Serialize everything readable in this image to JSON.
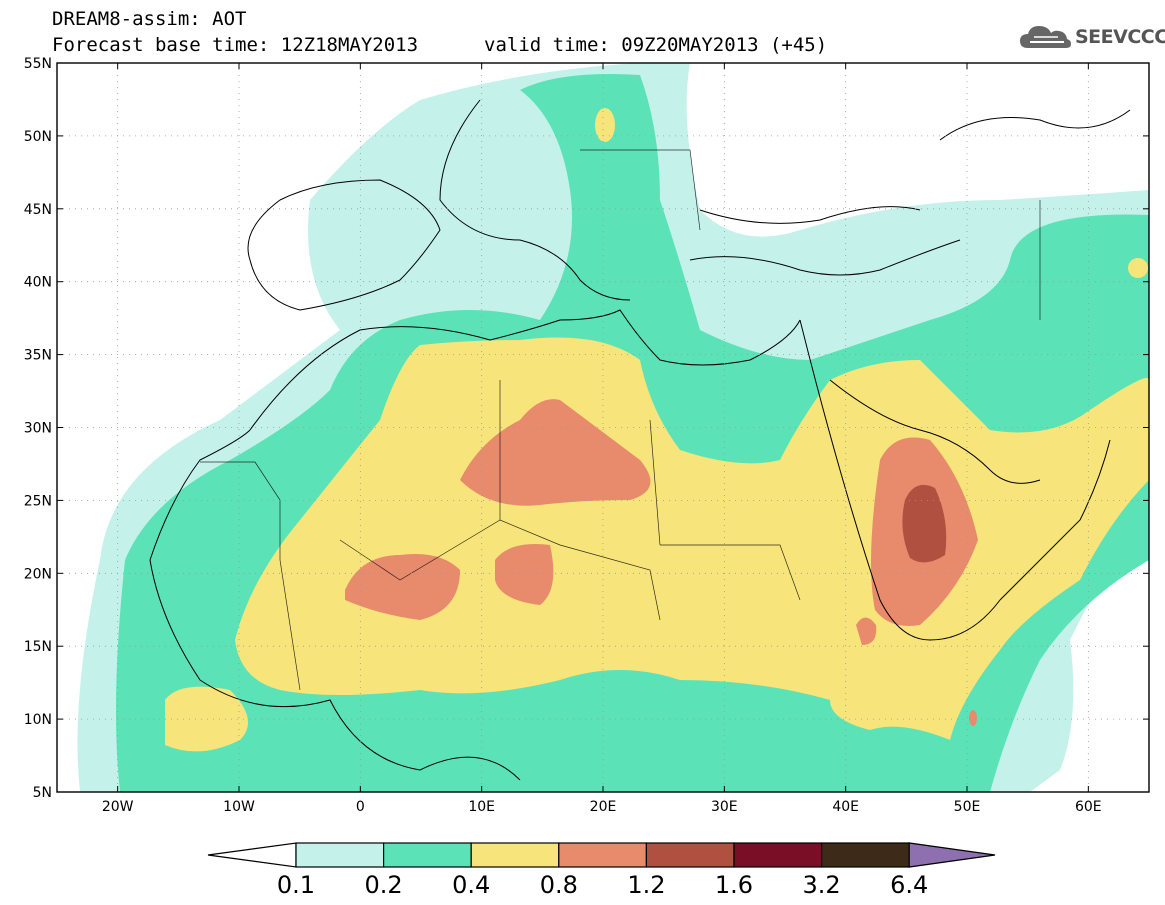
{
  "title_line1": "DREAM8-assim: AOT",
  "title_line2": "Forecast base time: 12Z18MAY2013",
  "valid_time": "valid time: 09Z20MAY2013 (+45)",
  "logo_text": "SEEVCCC",
  "lat_labels": [
    "55N",
    "50N",
    "45N",
    "40N",
    "35N",
    "30N",
    "25N",
    "20N",
    "15N",
    "10N",
    "5N"
  ],
  "lon_labels": [
    "20W",
    "10W",
    "0",
    "10E",
    "20E",
    "30E",
    "40E",
    "50E",
    "60E"
  ],
  "colorbar": {
    "levels": [
      "0.1",
      "0.2",
      "0.4",
      "0.8",
      "1.2",
      "1.6",
      "3.2",
      "6.4"
    ],
    "colors": [
      "#c4f2ea",
      "#5be3b7",
      "#f7e47a",
      "#e88a6c",
      "#b05040",
      "#7a0e26",
      "#3d2a18",
      "#8e70b0"
    ]
  }
}
